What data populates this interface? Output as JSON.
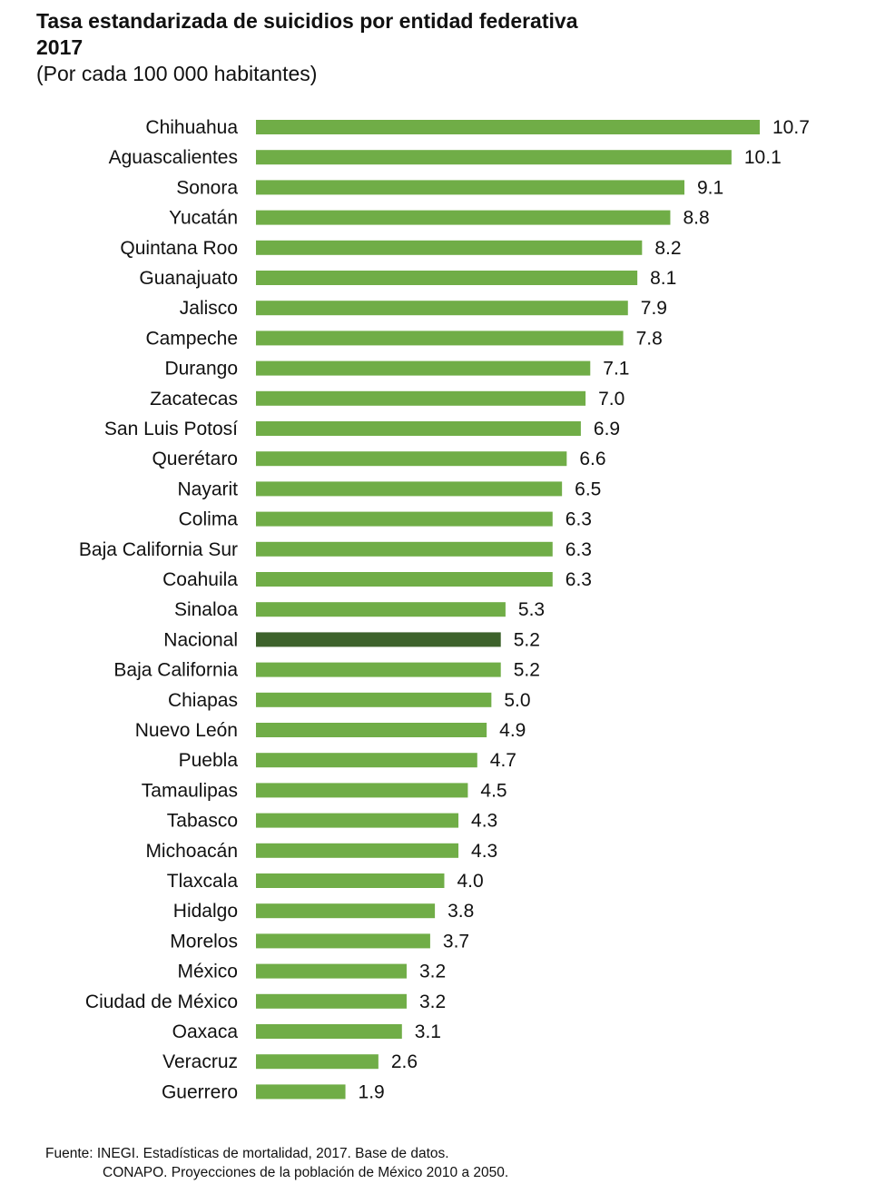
{
  "chart_data": {
    "type": "bar",
    "orientation": "horizontal",
    "title": "Tasa estandarizada de suicidios por entidad federativa",
    "year_label": "2017",
    "subtitle": "(Por cada 100 000 habitantes)",
    "categories": [
      "Chihuahua",
      "Aguascalientes",
      "Sonora",
      "Yucatán",
      "Quintana Roo",
      "Guanajuato",
      "Jalisco",
      "Campeche",
      "Durango",
      "Zacatecas",
      "San Luis Potosí",
      "Querétaro",
      "Nayarit",
      "Colima",
      "Baja California Sur",
      "Coahuila",
      "Sinaloa",
      "Nacional",
      "Baja California",
      "Chiapas",
      "Nuevo León",
      "Puebla",
      "Tamaulipas",
      "Tabasco",
      "Michoacán",
      "Tlaxcala",
      "Hidalgo",
      "Morelos",
      "México",
      "Ciudad de México",
      "Oaxaca",
      "Veracruz",
      "Guerrero"
    ],
    "values": [
      10.7,
      10.1,
      9.1,
      8.8,
      8.2,
      8.1,
      7.9,
      7.8,
      7.1,
      7.0,
      6.9,
      6.6,
      6.5,
      6.3,
      6.3,
      6.3,
      5.3,
      5.2,
      5.2,
      5.0,
      4.9,
      4.7,
      4.5,
      4.3,
      4.3,
      4.0,
      3.8,
      3.7,
      3.2,
      3.2,
      3.1,
      2.6,
      1.9
    ],
    "value_labels": [
      "10.7",
      "10.1",
      "9.1",
      "8.8",
      "8.2",
      "8.1",
      "7.9",
      "7.8",
      "7.1",
      "7.0",
      "6.9",
      "6.6",
      "6.5",
      "6.3",
      "6.3",
      "6.3",
      "5.3",
      "5.2",
      "5.2",
      "5.0",
      "4.9",
      "4.7",
      "4.5",
      "4.3",
      "4.3",
      "4.0",
      "3.8",
      "3.7",
      "3.2",
      "3.2",
      "3.1",
      "2.6",
      "1.9"
    ],
    "highlight_category": "Nacional",
    "xlim": [
      0,
      10.7
    ],
    "grid": false,
    "legend": "none",
    "colors": {
      "bar": "#70ad47",
      "highlight": "#3d622b"
    }
  },
  "source": {
    "line1": "Fuente: INEGI. Estadísticas de mortalidad, 2017. Base de datos.",
    "line2": "CONAPO. Proyecciones de la población de México 2010 a 2050."
  }
}
